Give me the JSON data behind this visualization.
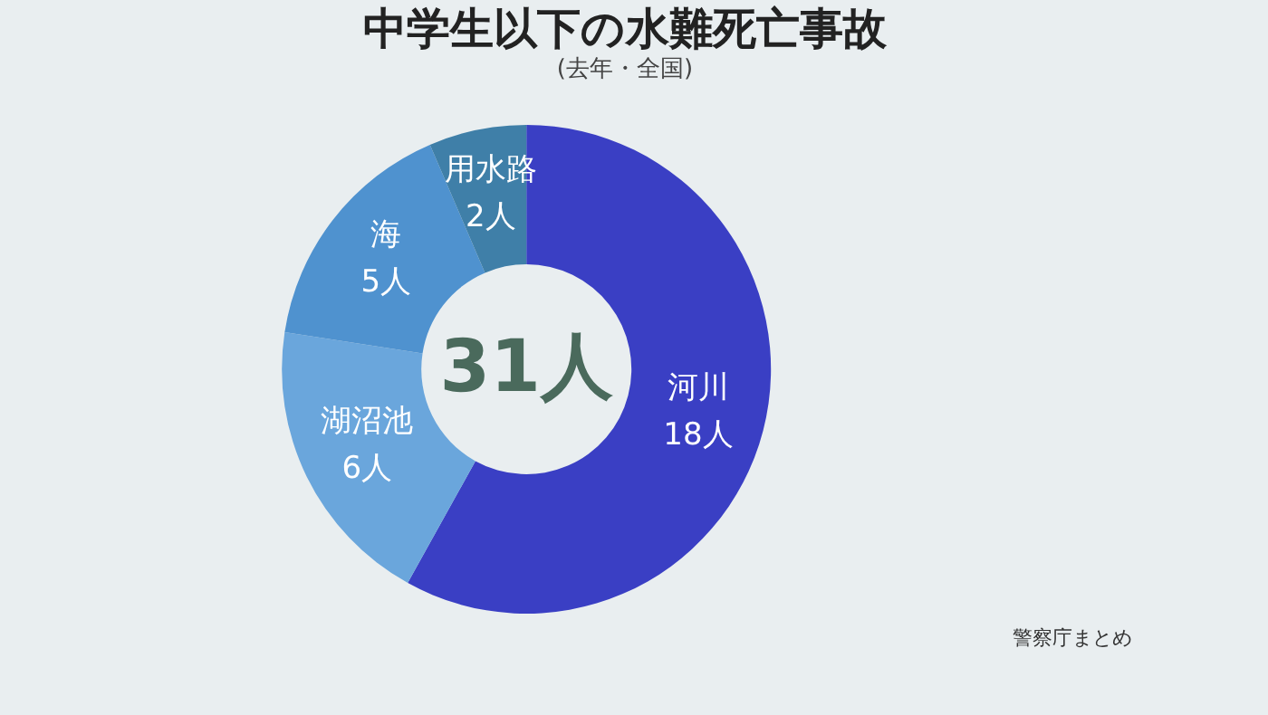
{
  "chart_data": {
    "type": "donut",
    "title": "中学生以下の水難死亡事故",
    "subtitle": "(去年・全国)",
    "categories": [
      "河川",
      "湖沼池",
      "海",
      "用水路"
    ],
    "values": [
      18,
      6,
      5,
      2
    ],
    "value_labels": [
      "18人",
      "6人",
      "5人",
      "2人"
    ],
    "colors": [
      "#3a3fc4",
      "#6aa6dc",
      "#4f92cf",
      "#3f7fa8"
    ],
    "annotations": [
      "31人",
      "警察庁まとめ"
    ],
    "legend": false
  }
}
